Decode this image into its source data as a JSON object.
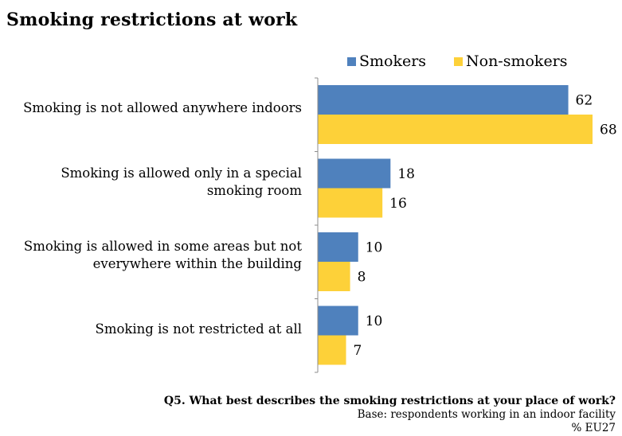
{
  "title": "Smoking restrictions at work",
  "colors": {
    "smokers": "#4f81bd",
    "non_smokers": "#fdd139",
    "axis": "#8c8c8c"
  },
  "footer": {
    "question": "Q5. What best describes the smoking restrictions at your place of work?",
    "base": "Base: respondents working in an indoor facility",
    "unit": "% EU27"
  },
  "chart_data": {
    "type": "bar",
    "orientation": "horizontal",
    "title": "Smoking restrictions at work",
    "legend_position": "top-right",
    "grid": false,
    "categories": [
      "Smoking is not allowed anywhere indoors",
      "Smoking is allowed only in a special smoking room",
      "Smoking is allowed in some areas but not everywhere within the building",
      "Smoking is not restricted at all"
    ],
    "category_lines": [
      [
        "Smoking is not allowed anywhere indoors"
      ],
      [
        "Smoking is allowed only in a special",
        "smoking room"
      ],
      [
        "Smoking is allowed in some areas but not",
        "everywhere within the building"
      ],
      [
        "Smoking is not restricted at all"
      ]
    ],
    "series": [
      {
        "name": "Smokers",
        "values": [
          62,
          18,
          10,
          10
        ]
      },
      {
        "name": "Non-smokers",
        "values": [
          68,
          16,
          8,
          7
        ]
      }
    ],
    "xlim": [
      0,
      70
    ]
  }
}
